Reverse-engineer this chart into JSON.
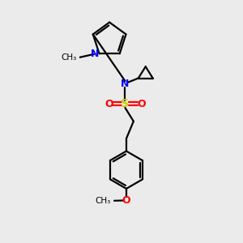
{
  "background_color": "#ebebeb",
  "bond_color": "#000000",
  "N_color": "#0000ff",
  "O_color": "#ff0000",
  "S_color": "#cccc00",
  "figsize": [
    3.0,
    3.0
  ],
  "dpi": 100,
  "xlim": [
    0,
    10
  ],
  "ylim": [
    0,
    10
  ]
}
